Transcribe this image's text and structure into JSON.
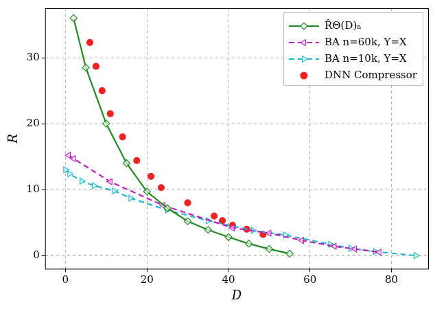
{
  "chart_data": {
    "type": "line",
    "x_label": "D",
    "y_label": "R",
    "xlim": [
      -5,
      89
    ],
    "ylim": [
      -2,
      37.5
    ],
    "xticks": [
      0,
      20,
      40,
      60,
      80
    ],
    "yticks": [
      0,
      10,
      20,
      30
    ],
    "grid": true,
    "legend": "upper right",
    "series": [
      {
        "name": "R̂Θ(D)ₙ",
        "color": "#1f8a1f",
        "marker": "diamond",
        "line_style": "solid",
        "type": "line",
        "x": [
          2,
          5,
          10,
          15,
          20,
          25,
          30,
          35,
          40,
          45,
          50,
          55
        ],
        "values": [
          36,
          28.5,
          20,
          14,
          9.7,
          7.2,
          5.2,
          3.9,
          2.8,
          1.8,
          1.0,
          0.3
        ]
      },
      {
        "name": "BA n=60k, Y=X",
        "color": "#c020c0",
        "marker": "triangle-left",
        "line_style": "dashed",
        "type": "line",
        "x": [
          0.8,
          2,
          11,
          24,
          41,
          50,
          58,
          66,
          71,
          77
        ],
        "values": [
          15.2,
          14.7,
          11.2,
          7.6,
          4.2,
          3.4,
          2.3,
          1.4,
          1.0,
          0.5
        ]
      },
      {
        "name": "BA n=10k, Y=X",
        "color": "#22b8c8",
        "marker": "triangle-right",
        "line_style": "dashed",
        "type": "line",
        "x": [
          0,
          1,
          4,
          7,
          12,
          16,
          25,
          35,
          46,
          54,
          65,
          70,
          76,
          86
        ],
        "values": [
          13,
          12.4,
          11.3,
          10.6,
          9.8,
          8.7,
          6.9,
          5.3,
          3.8,
          3.1,
          1.7,
          1.1,
          0.6,
          0
        ]
      },
      {
        "name": "DNN Compressor",
        "color": "#ee2222",
        "marker": "circle",
        "line_style": "none",
        "type": "scatter",
        "x": [
          6,
          7.5,
          9,
          11,
          14,
          17.5,
          21,
          23.5,
          30,
          36.5,
          38.5,
          41,
          44.5,
          48.5
        ],
        "values": [
          32.3,
          28.7,
          25,
          21.5,
          18,
          14.4,
          12,
          10.3,
          8,
          6,
          5.3,
          4.6,
          4,
          3.2
        ]
      }
    ]
  }
}
